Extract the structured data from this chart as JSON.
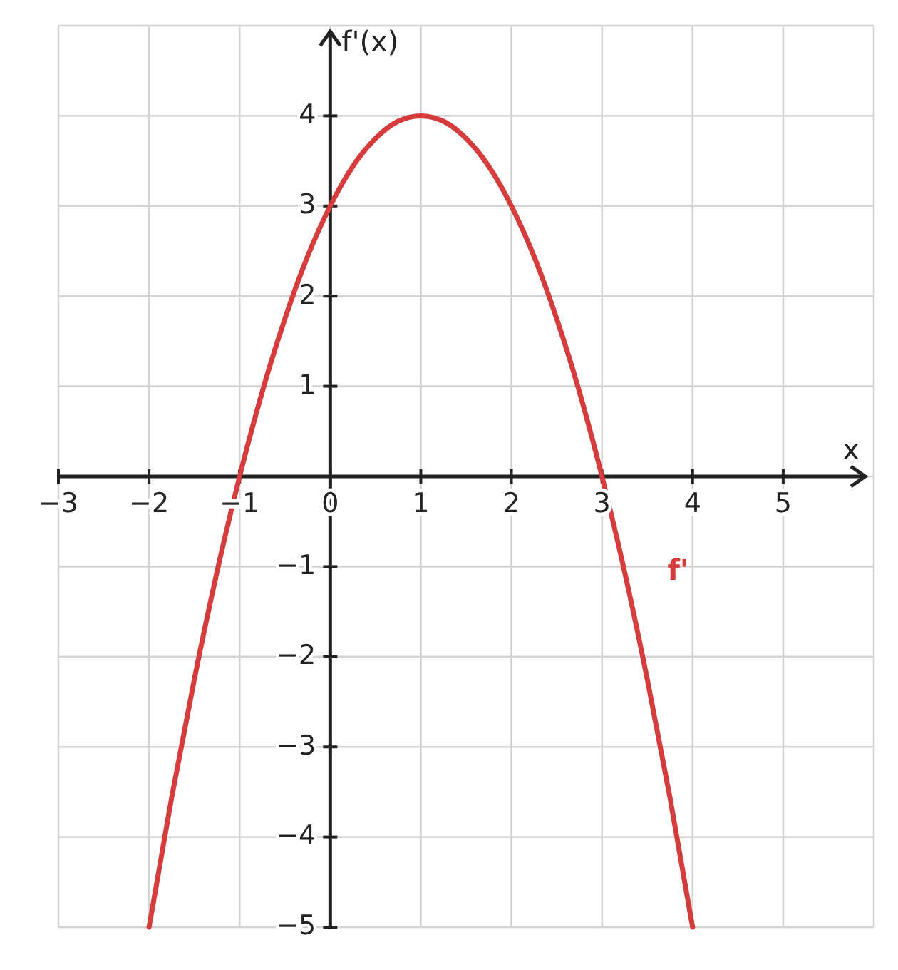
{
  "chart_data": {
    "type": "line",
    "xlabel": "x",
    "ylabel": "f'(x)",
    "xlim": [
      -3,
      6
    ],
    "ylim": [
      -5,
      5
    ],
    "xticks": [
      -3,
      -2,
      -1,
      0,
      1,
      2,
      3,
      4,
      5
    ],
    "yticks": [
      -5,
      -4,
      -3,
      -2,
      -1,
      1,
      2,
      3,
      4
    ],
    "grid": true,
    "series": [
      {
        "name": "f'",
        "color": "#d63c3c",
        "x": [
          -2,
          -1.75,
          -1.5,
          -1.25,
          -1,
          -0.75,
          -0.5,
          -0.25,
          0,
          0.25,
          0.5,
          0.75,
          1,
          1.25,
          1.5,
          1.75,
          2,
          2.25,
          2.5,
          2.75,
          3,
          3.25,
          3.5,
          3.75,
          4
        ],
        "values": [
          -5,
          -3.56,
          -2.25,
          -1.06,
          0,
          0.94,
          1.75,
          2.44,
          3,
          3.44,
          3.75,
          3.94,
          4,
          3.94,
          3.75,
          3.44,
          3,
          2.44,
          1.75,
          0.94,
          0,
          -1.06,
          -2.25,
          -3.56,
          -5
        ]
      }
    ]
  }
}
